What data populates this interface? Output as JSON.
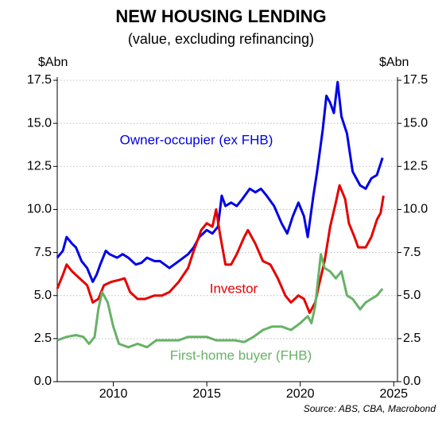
{
  "chart_data": {
    "type": "line",
    "title": "NEW HOUSING LENDING",
    "subtitle": "(value, excluding refinancing)",
    "ylabel": "$Abn",
    "y2label": "$Abn",
    "source": "Source: ABS, CBA, Macrobond",
    "xlim": [
      2007,
      2025.2
    ],
    "xticks": [
      2010,
      2015,
      2020,
      2025
    ],
    "ylim": [
      0,
      17.5
    ],
    "yticks": [
      {
        "value": 0,
        "label": "0.0"
      },
      2.5,
      {
        "value": 5,
        "label": "5.0"
      },
      7.5,
      {
        "value": 10,
        "label": "10.0"
      },
      12.5,
      {
        "value": 15,
        "label": "15.0"
      },
      17.5
    ],
    "y2lim": [
      0,
      17.5
    ],
    "y2ticks": [
      {
        "value": 0,
        "label": "0.0"
      },
      2.5,
      {
        "value": 5,
        "label": "5.0"
      },
      7.5,
      {
        "value": 10,
        "label": "10.0"
      },
      12.5,
      {
        "value": 15,
        "label": "15.0"
      },
      17.5
    ],
    "grid": true,
    "series": [
      {
        "name": "Owner-occupier (ex FHB)",
        "color": "#0000e6",
        "x": [
          2007.0,
          2007.3,
          2007.5,
          2007.8,
          2008.0,
          2008.3,
          2008.6,
          2008.9,
          2009.1,
          2009.3,
          2009.6,
          2009.8,
          2010.2,
          2010.5,
          2010.8,
          2011.2,
          2011.5,
          2011.8,
          2012.2,
          2012.5,
          2013.0,
          2013.5,
          2014.0,
          2014.3,
          2014.6,
          2015.0,
          2015.3,
          2015.6,
          2015.8,
          2016.0,
          2016.3,
          2016.6,
          2016.9,
          2017.3,
          2017.6,
          2017.9,
          2018.2,
          2018.6,
          2019.0,
          2019.3,
          2019.6,
          2019.9,
          2020.2,
          2020.4,
          2020.7,
          2020.9,
          2021.2,
          2021.4,
          2021.6,
          2021.8,
          2022.0,
          2022.2,
          2022.5,
          2022.8,
          2023.2,
          2023.5,
          2023.8,
          2024.1,
          2024.4
        ],
        "values": [
          7.2,
          7.6,
          8.4,
          8.0,
          7.8,
          7.0,
          6.6,
          5.8,
          6.2,
          6.8,
          7.6,
          7.4,
          7.2,
          7.4,
          7.2,
          6.8,
          6.9,
          7.2,
          7.0,
          7.0,
          6.6,
          7.0,
          7.4,
          7.8,
          8.4,
          8.8,
          8.6,
          9.0,
          10.8,
          10.2,
          10.4,
          10.2,
          10.6,
          11.2,
          11.0,
          11.2,
          10.8,
          10.2,
          9.2,
          8.6,
          9.6,
          10.4,
          9.6,
          8.4,
          10.8,
          12.2,
          14.6,
          16.6,
          16.2,
          15.6,
          17.4,
          15.4,
          14.4,
          12.2,
          11.4,
          11.2,
          11.8,
          12.0,
          13.0
        ]
      },
      {
        "name": "Investor",
        "color": "#e60000",
        "x": [
          2007.0,
          2007.3,
          2007.5,
          2007.8,
          2008.2,
          2008.6,
          2008.9,
          2009.2,
          2009.5,
          2009.9,
          2010.3,
          2010.6,
          2010.9,
          2011.3,
          2011.7,
          2012.2,
          2012.6,
          2013.0,
          2013.5,
          2014.0,
          2014.3,
          2014.7,
          2015.0,
          2015.3,
          2015.5,
          2015.7,
          2016.0,
          2016.3,
          2016.6,
          2017.0,
          2017.2,
          2017.6,
          2018.0,
          2018.4,
          2018.8,
          2019.2,
          2019.5,
          2019.9,
          2020.2,
          2020.5,
          2020.8,
          2021.0,
          2021.3,
          2021.6,
          2021.9,
          2022.1,
          2022.4,
          2022.6,
          2022.9,
          2023.1,
          2023.5,
          2023.8,
          2024.1,
          2024.3,
          2024.45
        ],
        "values": [
          5.4,
          6.2,
          6.8,
          6.4,
          6.0,
          5.6,
          4.6,
          4.8,
          5.6,
          5.8,
          5.9,
          6.0,
          5.2,
          4.8,
          4.8,
          5.0,
          5.0,
          5.2,
          5.8,
          6.6,
          7.6,
          8.8,
          9.2,
          9.0,
          10.0,
          8.6,
          6.8,
          6.8,
          7.4,
          8.4,
          8.8,
          8.0,
          7.0,
          6.8,
          6.0,
          5.0,
          4.6,
          5.0,
          4.8,
          4.0,
          4.6,
          5.6,
          7.0,
          9.0,
          10.4,
          11.4,
          10.6,
          9.2,
          8.4,
          7.8,
          7.8,
          8.4,
          9.4,
          9.8,
          10.8
        ]
      },
      {
        "name": "First-home buyer (FHB)",
        "color": "#66b266",
        "x": [
          2007.0,
          2007.5,
          2008.0,
          2008.4,
          2008.7,
          2009.0,
          2009.2,
          2009.4,
          2009.7,
          2010.0,
          2010.3,
          2010.8,
          2011.3,
          2011.8,
          2012.3,
          2012.8,
          2013.5,
          2014.0,
          2014.5,
          2015.0,
          2015.5,
          2016.0,
          2016.5,
          2017.0,
          2017.5,
          2018.0,
          2018.5,
          2019.0,
          2019.5,
          2020.0,
          2020.4,
          2020.6,
          2020.8,
          2021.0,
          2021.1,
          2021.3,
          2021.6,
          2021.9,
          2022.2,
          2022.5,
          2022.8,
          2023.2,
          2023.5,
          2023.8,
          2024.1,
          2024.4
        ],
        "values": [
          2.4,
          2.6,
          2.7,
          2.6,
          2.2,
          2.6,
          4.2,
          5.2,
          4.6,
          3.2,
          2.2,
          2.0,
          2.2,
          2.0,
          2.4,
          2.4,
          2.4,
          2.6,
          2.6,
          2.6,
          2.4,
          2.4,
          2.4,
          2.3,
          2.6,
          3.0,
          3.2,
          3.2,
          3.0,
          3.4,
          3.8,
          3.4,
          4.4,
          6.4,
          7.4,
          6.6,
          6.4,
          6.0,
          6.4,
          5.0,
          4.8,
          4.2,
          4.6,
          4.8,
          5.0,
          5.4
        ]
      }
    ]
  }
}
